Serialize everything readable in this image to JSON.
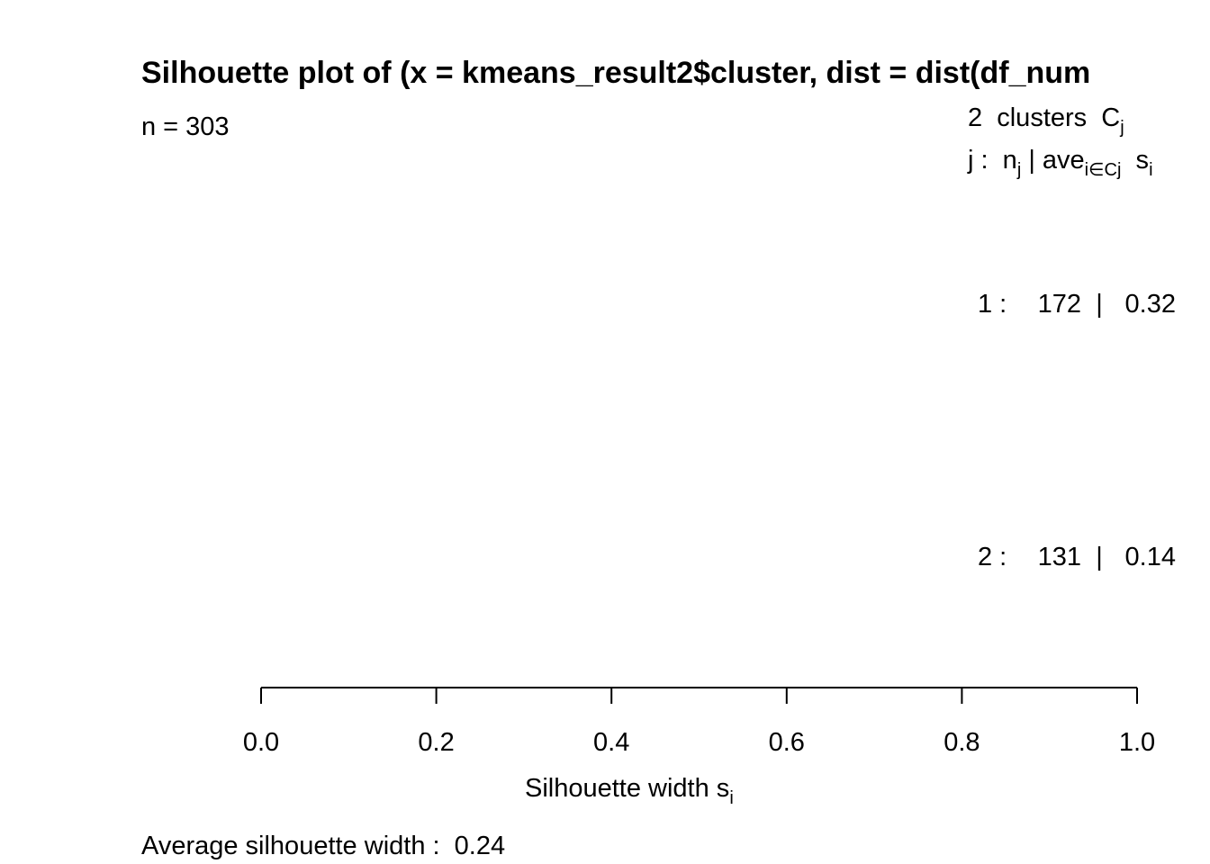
{
  "chart_data": {
    "type": "silhouette",
    "title": "Silhouette plot of (x = kmeans_result2$cluster, dist = dist(df_num",
    "subtitle": "n = 303",
    "legend_header": [
      [
        {
          "text": "2  clusters  C"
        },
        {
          "sub": "j"
        }
      ],
      [
        {
          "text": "j :  n"
        },
        {
          "sub": "j"
        },
        {
          "text": " | ave"
        },
        {
          "sub": "i∈Cj"
        },
        {
          "text": "  s"
        },
        {
          "sub": "i"
        }
      ]
    ],
    "clusters": [
      {
        "label": "1 :",
        "size": 172,
        "divider": "|",
        "average": 0.32
      },
      {
        "label": "2 :",
        "size": 131,
        "divider": "|",
        "average": 0.14
      }
    ],
    "xlabel": [
      {
        "text": "Silhouette width s"
      },
      {
        "sub": "i"
      }
    ],
    "xlim": [
      0,
      1
    ],
    "xticks": [
      {
        "value": 0,
        "label": "0.0"
      },
      0.2,
      0.4,
      0.6,
      0.8,
      {
        "value": 1,
        "label": "1.0"
      }
    ],
    "footer": "Average silhouette width :  0.24"
  }
}
